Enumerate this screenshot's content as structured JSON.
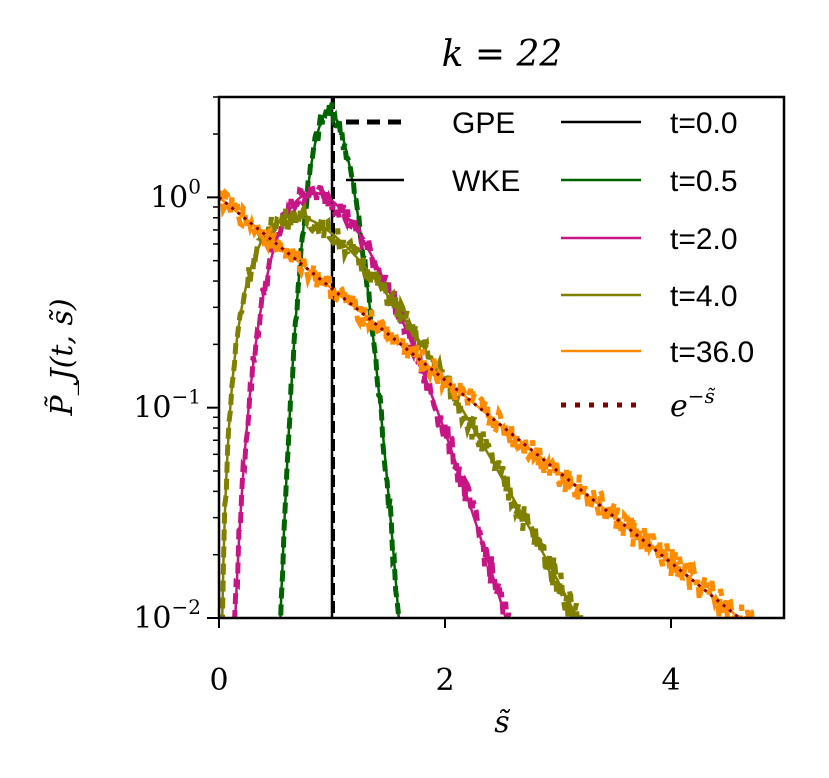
{
  "chart_data": {
    "type": "line",
    "title": "k = 22",
    "xlabel": "s̃",
    "ylabel": "P̃_J(t, s̃)",
    "xlim": [
      0,
      5
    ],
    "ylim": [
      0.01,
      3.0
    ],
    "yscale": "log",
    "grid": false,
    "x_ticks": [
      {
        "value": 0,
        "label": "0"
      },
      {
        "value": 2,
        "label": "2"
      },
      {
        "value": 4,
        "label": "4"
      }
    ],
    "y_ticks": [
      {
        "value": 0.01,
        "base": "10",
        "exp": "−2"
      },
      {
        "value": 0.1,
        "base": "10",
        "exp": "−1"
      },
      {
        "value": 1,
        "base": "10",
        "exp": "0"
      }
    ],
    "legend_style": [
      {
        "label": "GPE",
        "style": "dashed"
      },
      {
        "label": "WKE",
        "style": "solid"
      }
    ],
    "series": [
      {
        "name": "t=0.0",
        "color": "#000000",
        "kind": "delta",
        "x": 1.0
      },
      {
        "name": "t=0.5",
        "color": "#006400",
        "kind": "gamma",
        "k": 40,
        "theta": 0.025
      },
      {
        "name": "t=2.0",
        "color": "#c71585",
        "kind": "gamma",
        "k": 6,
        "theta": 0.1667
      },
      {
        "name": "t=4.0",
        "color": "#808000",
        "kind": "gamma",
        "k": 3,
        "theta": 0.3333
      },
      {
        "name": "t=36.0",
        "color": "#ff8c00",
        "kind": "gamma",
        "k": 1,
        "theta": 1.0
      },
      {
        "name": "e^{-s̃}",
        "label_base": "e",
        "label_exp": "−s̃",
        "color": "#800000",
        "kind": "exponential",
        "style": "dotted"
      }
    ],
    "legend_placement": "top-right"
  }
}
